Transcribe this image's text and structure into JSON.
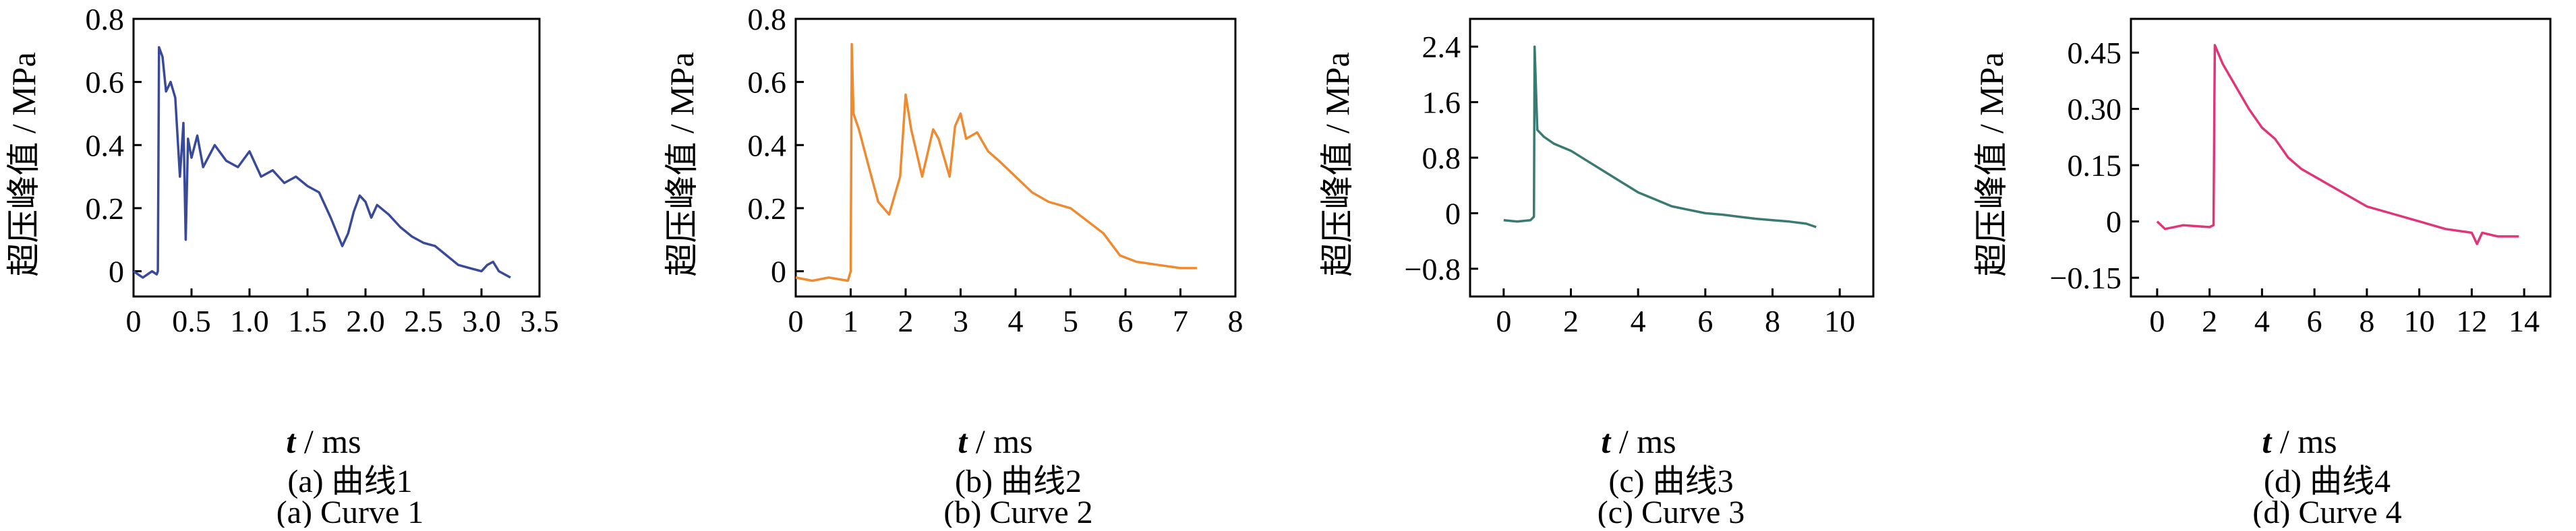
{
  "chart_data": [
    {
      "type": "line",
      "caption_cn": "(a)  曲线1",
      "caption_en": "(a)  Curve 1",
      "ylabel": "超压峰值 / MPa",
      "xlabel_var": "t",
      "xlabel_unit": " / ms",
      "xlim": [
        0,
        3.5
      ],
      "ylim": [
        -0.08,
        0.8
      ],
      "xticks": [
        0,
        0.5,
        1.0,
        1.5,
        2.0,
        2.5,
        3.0,
        3.5
      ],
      "xtick_labels": [
        "0",
        "0.5",
        "1.0",
        "1.5",
        "2.0",
        "2.5",
        "3.0",
        "3.5"
      ],
      "yticks": [
        0,
        0.2,
        0.4,
        0.6,
        0.8
      ],
      "ytick_labels": [
        "0",
        "0.2",
        "0.4",
        "0.6",
        "0.8"
      ],
      "color": "#3a4a9a",
      "series": [
        {
          "x": [
            0.0,
            0.08,
            0.16,
            0.2,
            0.21,
            0.22,
            0.25,
            0.28,
            0.32,
            0.36,
            0.4,
            0.43,
            0.45,
            0.47,
            0.5,
            0.55,
            0.6,
            0.7,
            0.8,
            0.9,
            1.0,
            1.1,
            1.2,
            1.3,
            1.4,
            1.5,
            1.6,
            1.7,
            1.8,
            1.85,
            1.9,
            1.95,
            2.0,
            2.05,
            2.1,
            2.2,
            2.3,
            2.4,
            2.5,
            2.6,
            2.7,
            2.8,
            2.9,
            3.0,
            3.05,
            3.1,
            3.15,
            3.2,
            3.25
          ],
          "y": [
            0.0,
            -0.02,
            0.0,
            -0.01,
            0.0,
            0.71,
            0.68,
            0.57,
            0.6,
            0.55,
            0.3,
            0.47,
            0.1,
            0.42,
            0.36,
            0.43,
            0.33,
            0.4,
            0.35,
            0.33,
            0.38,
            0.3,
            0.32,
            0.28,
            0.3,
            0.27,
            0.25,
            0.17,
            0.08,
            0.12,
            0.19,
            0.24,
            0.22,
            0.17,
            0.21,
            0.18,
            0.14,
            0.11,
            0.09,
            0.08,
            0.05,
            0.02,
            0.01,
            0.0,
            0.02,
            0.03,
            0.0,
            -0.01,
            -0.02
          ]
        }
      ]
    },
    {
      "type": "line",
      "caption_cn": "(b)  曲线2",
      "caption_en": "(b)  Curve 2",
      "ylabel": "超压峰值 / MPa",
      "xlabel_var": "t",
      "xlabel_unit": " / ms",
      "xlim": [
        0,
        8
      ],
      "ylim": [
        -0.08,
        0.8
      ],
      "xticks": [
        0,
        1,
        2,
        3,
        4,
        5,
        6,
        7,
        8
      ],
      "xtick_labels": [
        "0",
        "1",
        "2",
        "3",
        "4",
        "5",
        "6",
        "7",
        "8"
      ],
      "yticks": [
        0,
        0.2,
        0.4,
        0.6,
        0.8
      ],
      "ytick_labels": [
        "0",
        "0.2",
        "0.4",
        "0.6",
        "0.8"
      ],
      "color": "#ef8a30",
      "series": [
        {
          "x": [
            0.0,
            0.3,
            0.6,
            0.95,
            1.0,
            1.02,
            1.05,
            1.15,
            1.3,
            1.5,
            1.7,
            1.9,
            2.0,
            2.1,
            2.3,
            2.5,
            2.6,
            2.8,
            2.9,
            3.0,
            3.1,
            3.3,
            3.5,
            3.7,
            4.0,
            4.3,
            4.6,
            5.0,
            5.3,
            5.6,
            5.9,
            6.2,
            6.6,
            7.0,
            7.3
          ],
          "y": [
            -0.02,
            -0.03,
            -0.02,
            -0.03,
            0.0,
            0.72,
            0.5,
            0.45,
            0.35,
            0.22,
            0.18,
            0.3,
            0.56,
            0.45,
            0.3,
            0.45,
            0.42,
            0.3,
            0.46,
            0.5,
            0.42,
            0.44,
            0.38,
            0.35,
            0.3,
            0.25,
            0.22,
            0.2,
            0.16,
            0.12,
            0.05,
            0.03,
            0.02,
            0.01,
            0.01
          ]
        }
      ]
    },
    {
      "type": "line",
      "caption_cn": "(c)  曲线3",
      "caption_en": "(c)  Curve 3",
      "ylabel": "超压峰值 / MPa",
      "xlabel_var": "t",
      "xlabel_unit": " / ms",
      "xlim": [
        -1,
        11
      ],
      "ylim": [
        -1.2,
        2.8
      ],
      "xticks": [
        0,
        2,
        4,
        6,
        8,
        10
      ],
      "xtick_labels": [
        "0",
        "2",
        "4",
        "6",
        "8",
        "10"
      ],
      "yticks": [
        -0.8,
        0,
        0.8,
        1.6,
        2.4
      ],
      "ytick_labels": [
        "−0.8",
        "0",
        "0.8",
        "1.6",
        "2.4"
      ],
      "color": "#3a7a72",
      "series": [
        {
          "x": [
            0.0,
            0.4,
            0.8,
            0.9,
            0.92,
            1.0,
            1.2,
            1.5,
            2.0,
            2.5,
            3.0,
            3.5,
            4.0,
            4.5,
            5.0,
            5.5,
            6.0,
            6.5,
            7.0,
            7.5,
            8.0,
            8.5,
            9.0,
            9.3
          ],
          "y": [
            -0.1,
            -0.12,
            -0.1,
            -0.05,
            2.4,
            1.2,
            1.1,
            1.0,
            0.9,
            0.75,
            0.6,
            0.45,
            0.3,
            0.2,
            0.1,
            0.05,
            0.0,
            -0.02,
            -0.05,
            -0.08,
            -0.1,
            -0.12,
            -0.15,
            -0.2
          ]
        }
      ]
    },
    {
      "type": "line",
      "caption_cn": "(d)  曲线4",
      "caption_en": "(d)  Curve 4",
      "ylabel": "超压峰值 / MPa",
      "xlabel_var": "t",
      "xlabel_unit": " / ms",
      "xlim": [
        -1,
        15
      ],
      "ylim": [
        -0.2,
        0.54
      ],
      "xticks": [
        0,
        2,
        4,
        6,
        8,
        10,
        12,
        14
      ],
      "xtick_labels": [
        "0",
        "2",
        "4",
        "6",
        "8",
        "10",
        "12",
        "14"
      ],
      "yticks": [
        -0.15,
        0,
        0.15,
        0.3,
        0.45
      ],
      "ytick_labels": [
        "−0.15",
        "0",
        "0.15",
        "0.30",
        "0.45"
      ],
      "color": "#e0357a",
      "series": [
        {
          "x": [
            0.0,
            0.3,
            1.0,
            2.0,
            2.15,
            2.2,
            2.5,
            3.0,
            3.5,
            4.0,
            4.5,
            5.0,
            5.5,
            6.0,
            7.0,
            8.0,
            9.0,
            10.0,
            11.0,
            12.0,
            12.2,
            12.4,
            13.0,
            13.8
          ],
          "y": [
            0.0,
            -0.02,
            -0.01,
            -0.015,
            -0.01,
            0.47,
            0.42,
            0.36,
            0.3,
            0.25,
            0.22,
            0.17,
            0.14,
            0.12,
            0.08,
            0.04,
            0.02,
            0.0,
            -0.02,
            -0.03,
            -0.06,
            -0.03,
            -0.04,
            -0.04
          ]
        }
      ]
    }
  ]
}
